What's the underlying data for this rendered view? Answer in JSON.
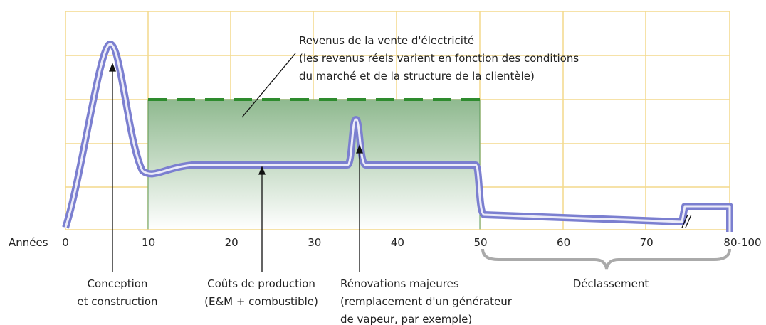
{
  "x_axis": {
    "label": "Années",
    "ticks": [
      "0",
      "10",
      "20",
      "30",
      "40",
      "50",
      "60",
      "70",
      "80-100"
    ]
  },
  "annotations": {
    "revenue": [
      "Revenus de la vente d'électricité",
      "(les revenus réels varient en fonction des conditions",
      "du marché et de la structure de la clientèle)"
    ],
    "construction": [
      "Conception",
      "et construction"
    ],
    "production": [
      "Coûts de production",
      "(E&M + combustible)"
    ],
    "renovation": [
      "Rénovations majeures",
      "(remplacement d'un générateur",
      "de vapeur, par exemple)"
    ],
    "decommissioning": [
      "Déclassement"
    ]
  }
}
